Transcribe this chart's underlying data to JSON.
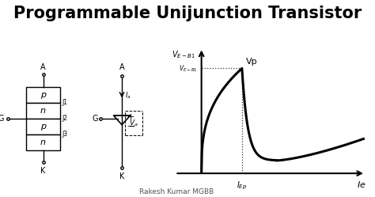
{
  "title": "Programmable Unijunction Transistor",
  "title_fontsize": 15,
  "title_fontweight": "bold",
  "fg_color": "#000000",
  "author_text": "Rakesh Kumar MGBB",
  "author_fontsize": 7,
  "symbol_sections": [
    "p",
    "n",
    "p",
    "n"
  ],
  "graph_xlabel": "Ie",
  "graph_ylabel": "V_{E-B1}",
  "graph_vp_label": "Vp",
  "graph_iep_label": "I_{Ep}",
  "label_A": "A",
  "label_K": "K",
  "label_G": "G",
  "label_J1": "J1",
  "label_J2": "J2",
  "label_J3": "J3",
  "label_Ia": "Ia",
  "label_Va": "Va"
}
